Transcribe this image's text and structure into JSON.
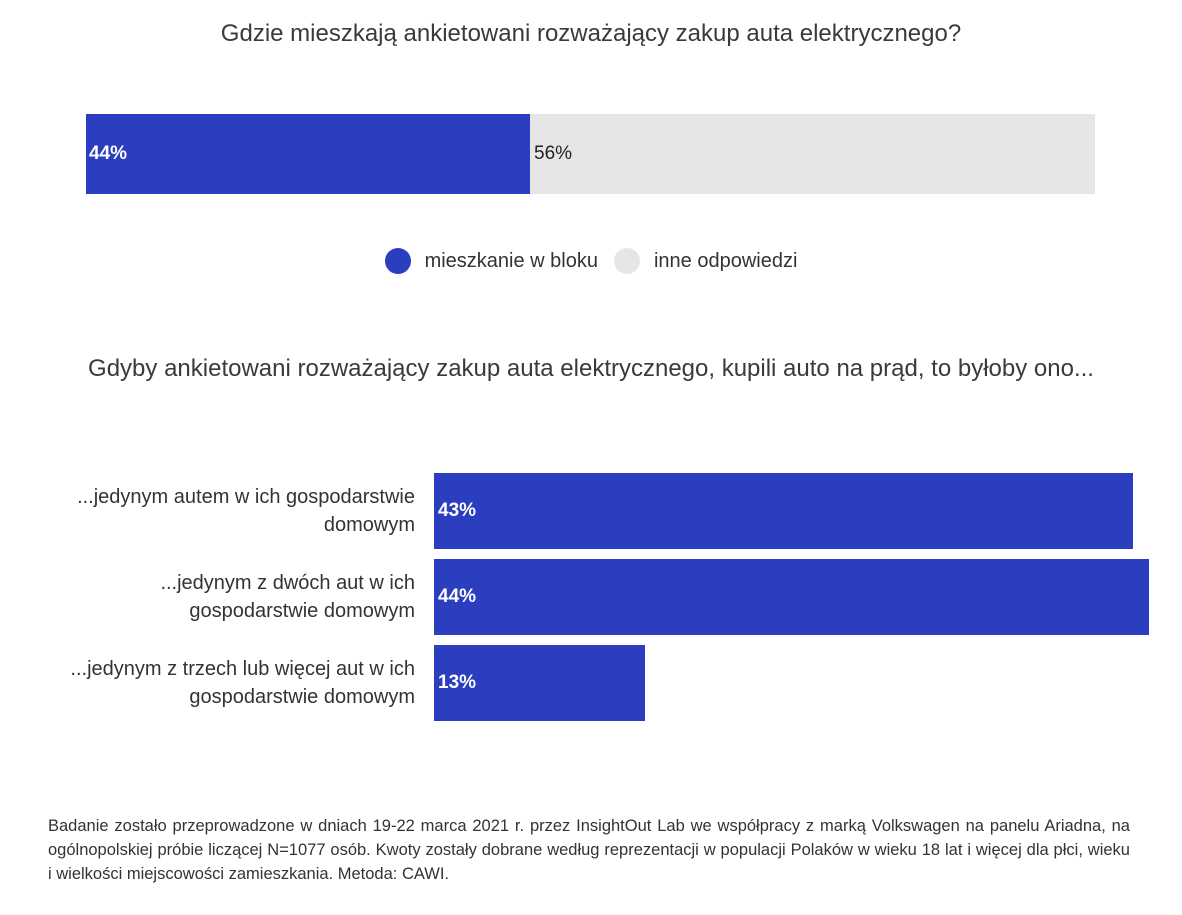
{
  "chart_data": [
    {
      "type": "bar",
      "stacked": true,
      "orientation": "horizontal",
      "title": "Gdzie mieszkają ankietowani rozważający zakup auta elektrycznego?",
      "categories": [
        ""
      ],
      "series": [
        {
          "name": "mieszkanie w bloku",
          "values": [
            44
          ],
          "label": "44%",
          "color": "#2a3ebf"
        },
        {
          "name": "inne odpowiedzi",
          "values": [
            56
          ],
          "label": "56%",
          "color": "#e6e6e6"
        }
      ],
      "xlim": [
        0,
        100
      ],
      "legend": "bottom-center"
    },
    {
      "type": "bar",
      "orientation": "horizontal",
      "title": "Gdyby ankietowani rozważający zakup auta elektrycznego, kupili auto na prąd, to byłoby ono...",
      "categories": [
        "...jedynym autem w ich gospodarstwie domowym",
        "...jedynym z dwóch aut w ich gospodarstwie domowym",
        "...jedynym z trzech lub więcej aut w ich gospodarstwie domowym"
      ],
      "category_lines": [
        [
          "...jedynym autem w ich gospodarstwie",
          "domowym"
        ],
        [
          "...jedynym z dwóch aut w ich",
          "gospodarstwie domowym"
        ],
        [
          "...jedynym z trzech lub więcej aut w ich",
          "gospodarstwie domowym"
        ]
      ],
      "values": [
        43,
        44,
        13
      ],
      "value_labels": [
        "43%",
        "44%",
        "13%"
      ],
      "color": "#2a3ebf",
      "xlim": [
        0,
        44
      ]
    }
  ],
  "footnote": "Badanie zostało przeprowadzone w dniach 19-22 marca 2021 r. przez InsightOut Lab we współpracy z marką Volkswagen na panelu Ariadna, na ogólnopolskiej próbie liczącej N=1077 osób. Kwoty zostały dobrane według reprezentacji w populacji Polaków w wieku 18 lat i więcej dla płci, wieku i wielkości miejscowości zamieszkania. Metoda: CAWI."
}
